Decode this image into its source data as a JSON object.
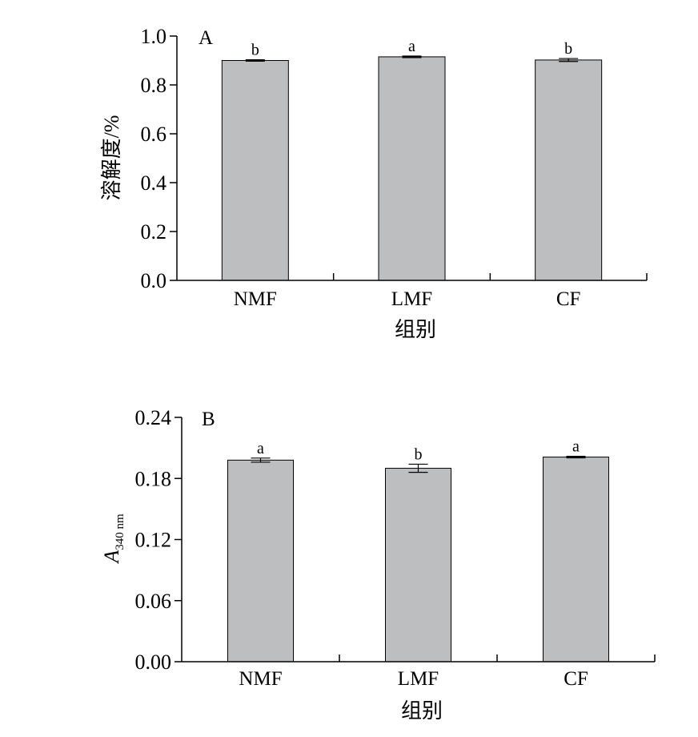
{
  "chart_data": [
    {
      "type": "bar",
      "panel": "A",
      "categories": [
        "NMF",
        "LMF",
        "CF"
      ],
      "values": [
        0.9,
        0.915,
        0.902
      ],
      "errors": [
        0.003,
        0.003,
        0.006
      ],
      "significance": [
        "b",
        "a",
        "b"
      ],
      "xlabel": "组别",
      "ylabel": "溶解度/%",
      "ylim": [
        0,
        1.0
      ],
      "yticks": [
        "0.0",
        "0.2",
        "0.4",
        "0.6",
        "0.8",
        "1.0"
      ],
      "bar_color": "#bdbec0",
      "grid": false
    },
    {
      "type": "bar",
      "panel": "B",
      "categories": [
        "NMF",
        "LMF",
        "CF"
      ],
      "values": [
        0.198,
        0.19,
        0.201
      ],
      "errors": [
        0.002,
        0.004,
        0.0008
      ],
      "significance": [
        "a",
        "b",
        "a"
      ],
      "xlabel": "组别",
      "ylabel": "A",
      "ylabel_subscript": "340 nm",
      "ylim": [
        0,
        0.24
      ],
      "yticks": [
        "0.00",
        "0.06",
        "0.12",
        "0.18",
        "0.24"
      ],
      "bar_color": "#bdbec0",
      "grid": false
    }
  ]
}
